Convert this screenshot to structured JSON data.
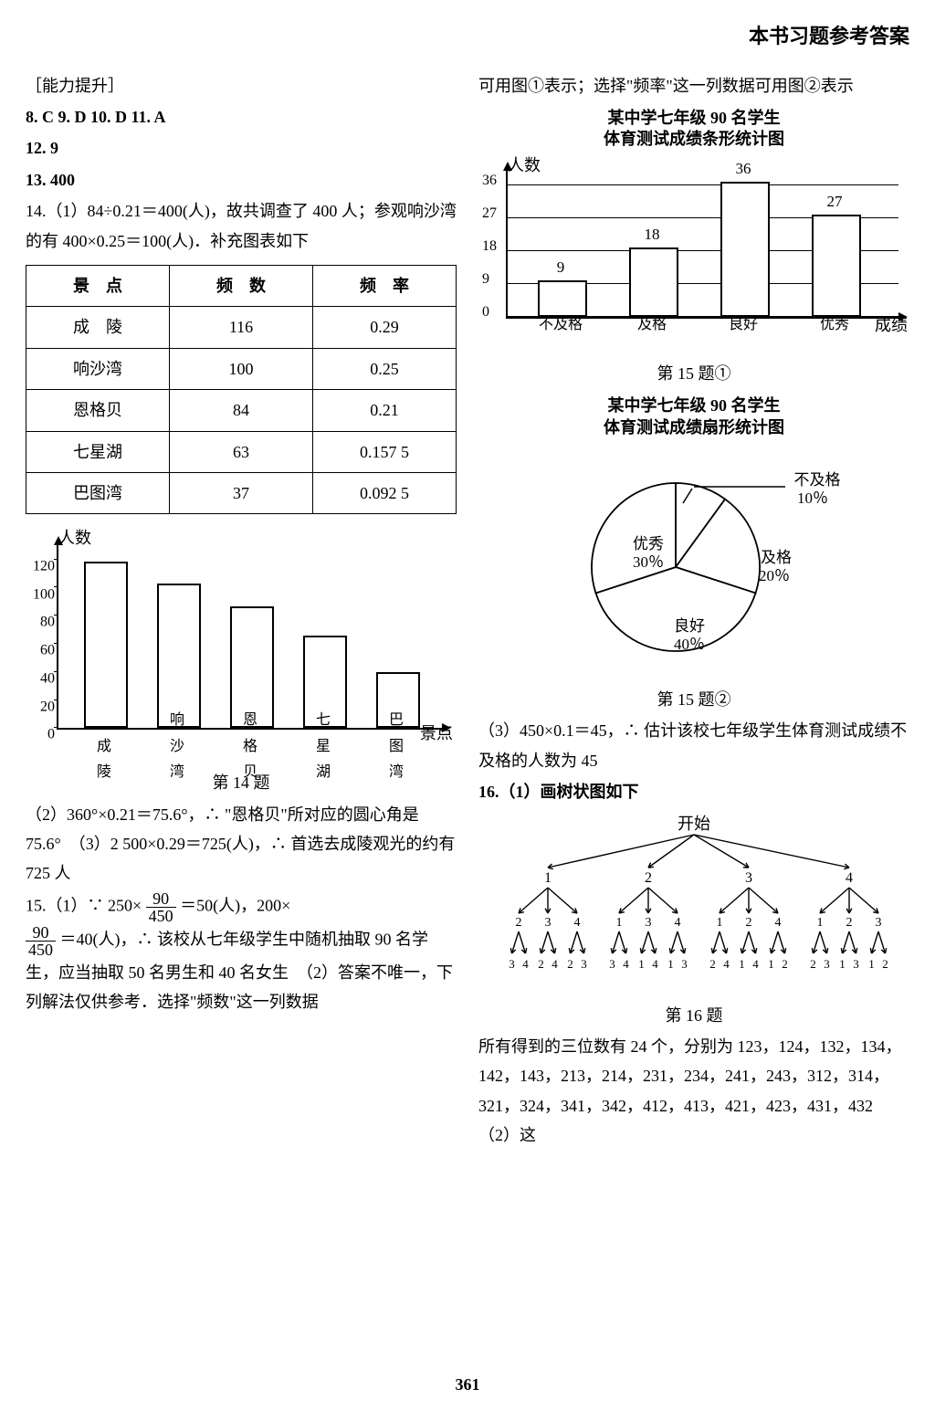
{
  "header": "本书习题参考答案",
  "left": {
    "section": "［能力提升］",
    "q8": "8. C  9. D  10. D  11. A",
    "q12": "12. 9",
    "q13": "13. 400",
    "q14a": "14.（1）84÷0.21＝400(人)，故共调查了 400 人；参观响沙湾的有 400×0.25＝100(人)．补充图表如下",
    "table_headers": [
      "景　点",
      "频　数",
      "频　率"
    ],
    "table_rows": [
      [
        "成　陵",
        "116",
        "0.29"
      ],
      [
        "响沙湾",
        "100",
        "0.25"
      ],
      [
        "恩格贝",
        "84",
        "0.21"
      ],
      [
        "七星湖",
        "63",
        "0.157 5"
      ],
      [
        "巴图湾",
        "37",
        "0.092 5"
      ]
    ],
    "bar_chart": {
      "type": "bar",
      "y_label": "人数",
      "x_label": "景点",
      "ylim": 130,
      "yticks": [
        0,
        20,
        40,
        60,
        80,
        100,
        120
      ],
      "categories": [
        "成\n陵",
        "响\n沙\n湾",
        "恩\n格\n贝",
        "七\n星\n湖",
        "巴\n图\n湾"
      ],
      "values": [
        116,
        100,
        84,
        63,
        37
      ],
      "bar_color": "#ffffff",
      "border_color": "#000000"
    },
    "caption14": "第 14 题",
    "q14b": "（2）360°×0.21＝75.6°，∴ \"恩格贝\"所对应的圆心角是 75.6°　（3）2 500×0.29＝725(人)，∴ 首选去成陵观光的约有 725 人",
    "q15a_prefix": "15.（1）∵ 250×",
    "q15a_mid": "＝50(人)，200×",
    "q15a_after": "＝40(人)，∴ 该校从七年级学生中随机抽取 90 名学生，应当抽取 50 名男生和 40 名女生　（2）答案不唯一，下列解法仅供参考．选择\"频数\"这一列数据",
    "frac90": {
      "num": "90",
      "den": "450"
    }
  },
  "right": {
    "q15cont": "可用图①表示；选择\"频率\"这一列数据可用图②表示",
    "chart_title_1a": "某中学七年级 90 名学生",
    "chart_title_1b": "体育测试成绩条形统计图",
    "bar_chart2": {
      "type": "bar",
      "y_label": "人数",
      "x_label": "成绩",
      "ylim": 40,
      "yticks": [
        0,
        9,
        18,
        27,
        36
      ],
      "categories": [
        "不及格",
        "及格",
        "良好",
        "优秀"
      ],
      "values": [
        9,
        18,
        36,
        27
      ],
      "bar_color": "#ffffff",
      "border_color": "#000",
      "grid_color": "#000"
    },
    "caption15_1": "第 15 题①",
    "chart_title_2a": "某中学七年级 90 名学生",
    "chart_title_2b": "体育测试成绩扇形统计图",
    "pie": {
      "type": "pie",
      "slices": [
        {
          "label": "不及格\n10％",
          "value": 10,
          "start": -90
        },
        {
          "label": "及格\n20％",
          "value": 20,
          "start": -54
        },
        {
          "label": "良好\n40％",
          "value": 40,
          "start": 18
        },
        {
          "label": "优秀\n30％",
          "value": 30,
          "start": 162
        }
      ],
      "stroke": "#000"
    },
    "caption15_2": "第 15 题②",
    "q15_3": "（3）450×0.1＝45，∴ 估计该校七年级学生体育测试成绩不及格的人数为 45",
    "q16a": "16.（1）画树状图如下",
    "tree_root": "开始",
    "caption16": "第 16 题",
    "q16b": "所有得到的三位数有 24 个，分别为 123，124，132，134，142，143，213，214，231，234，241，243，312，314，321，324，341，342，412，413，421，423，431，432　（2）这"
  },
  "pageNum": "361"
}
